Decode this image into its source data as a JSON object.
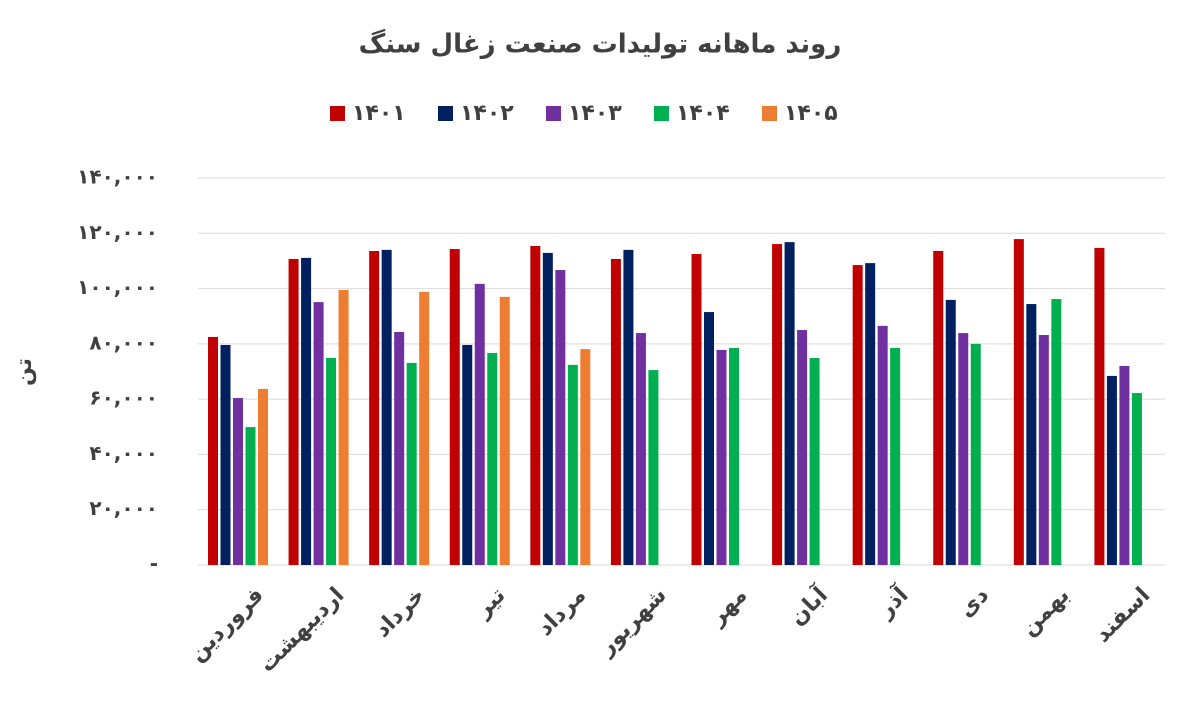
{
  "chart_data": {
    "type": "bar",
    "title": "روند ماهانه تولیدات صنعت زغال سنگ",
    "y_label": "تن",
    "categories": [
      "فروردین",
      "اردیبهشت",
      "خرداد",
      "تیر",
      "مرداد",
      "شهریور",
      "مهر",
      "آبان",
      "آذر",
      "دی",
      "بهمن",
      "اسفند"
    ],
    "series": [
      {
        "name": "۱۴۰۱",
        "color": "#c00000",
        "values": [
          82500,
          110700,
          113600,
          114300,
          115400,
          110700,
          112500,
          116100,
          108500,
          113600,
          117900,
          114700
        ]
      },
      {
        "name": "۱۴۰۲",
        "color": "#002060",
        "values": [
          79600,
          111100,
          114000,
          79600,
          112900,
          114000,
          91500,
          116800,
          109200,
          95900,
          94400,
          68400
        ]
      },
      {
        "name": "۱۴۰۳",
        "color": "#7030a0",
        "values": [
          60400,
          95100,
          84300,
          101700,
          106700,
          83900,
          77800,
          85000,
          86500,
          83900,
          83200,
          72000
        ]
      },
      {
        "name": "۱۴۰۴",
        "color": "#00b050",
        "values": [
          49900,
          74900,
          73100,
          76700,
          72400,
          70500,
          78500,
          74900,
          78500,
          80000,
          96200,
          62200
        ]
      },
      {
        "name": "۱۴۰۵",
        "color": "#ed7d31",
        "values": [
          63700,
          99500,
          98800,
          97000,
          78100,
          null,
          null,
          null,
          null,
          null,
          null,
          null
        ]
      }
    ],
    "ylim": [
      0,
      140000
    ],
    "yticks": [
      {
        "value": 0,
        "label": "-"
      },
      {
        "value": 20000,
        "label": "۲۰,۰۰۰"
      },
      {
        "value": 40000,
        "label": "۴۰,۰۰۰"
      },
      {
        "value": 60000,
        "label": "۶۰,۰۰۰"
      },
      {
        "value": 80000,
        "label": "۸۰,۰۰۰"
      },
      {
        "value": 100000,
        "label": "۱۰۰,۰۰۰"
      },
      {
        "value": 120000,
        "label": "۱۲۰,۰۰۰"
      },
      {
        "value": 140000,
        "label": "۱۴۰,۰۰۰"
      }
    ],
    "grid": true
  }
}
